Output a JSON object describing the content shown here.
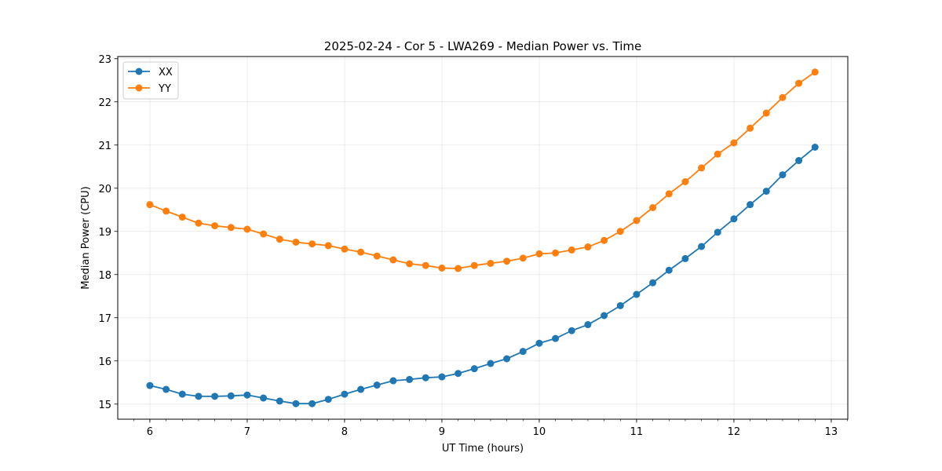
{
  "chart_data": {
    "type": "line",
    "title": "2025-02-24 - Cor 5 - LWA269 - Median Power vs. Time",
    "xlabel": "UT Time (hours)",
    "ylabel": "Median Power (CPU)",
    "xlim": [
      5.67,
      13.17
    ],
    "ylim": [
      14.65,
      23.05
    ],
    "xticks": [
      6,
      7,
      8,
      9,
      10,
      11,
      12,
      13
    ],
    "yticks": [
      15,
      16,
      17,
      18,
      19,
      20,
      21,
      22,
      23
    ],
    "xminor_step": 0.16667,
    "grid": true,
    "legend_position": "top-left",
    "x": [
      6.0,
      6.1667,
      6.3333,
      6.5,
      6.6667,
      6.8333,
      7.0,
      7.1667,
      7.3333,
      7.5,
      7.6667,
      7.8333,
      8.0,
      8.1667,
      8.3333,
      8.5,
      8.6667,
      8.8333,
      9.0,
      9.1667,
      9.3333,
      9.5,
      9.6667,
      9.8333,
      10.0,
      10.1667,
      10.3333,
      10.5,
      10.6667,
      10.8333,
      11.0,
      11.1667,
      11.3333,
      11.5,
      11.6667,
      11.8333,
      12.0,
      12.1667,
      12.3333,
      12.5,
      12.6667,
      12.8333
    ],
    "series": [
      {
        "name": "XX",
        "color": "#1f77b4",
        "values": [
          15.43,
          15.34,
          15.23,
          15.18,
          15.18,
          15.19,
          15.21,
          15.14,
          15.07,
          15.01,
          15.01,
          15.11,
          15.23,
          15.34,
          15.44,
          15.54,
          15.57,
          15.61,
          15.63,
          15.71,
          15.82,
          15.94,
          16.05,
          16.22,
          16.41,
          16.52,
          16.7,
          16.84,
          17.05,
          17.28,
          17.54,
          17.81,
          18.1,
          18.37,
          18.65,
          18.98,
          19.29,
          19.62,
          19.93,
          20.31,
          20.64,
          20.95
        ]
      },
      {
        "name": "YY",
        "color": "#ff7f0e",
        "values": [
          19.62,
          19.47,
          19.33,
          19.19,
          19.13,
          19.09,
          19.05,
          18.94,
          18.82,
          18.75,
          18.71,
          18.67,
          18.59,
          18.52,
          18.43,
          18.34,
          18.25,
          18.21,
          18.15,
          18.14,
          18.21,
          18.26,
          18.31,
          18.38,
          18.48,
          18.5,
          18.57,
          18.64,
          18.79,
          19.0,
          19.25,
          19.55,
          19.87,
          20.15,
          20.47,
          20.79,
          21.05,
          21.39,
          21.74,
          22.1,
          22.43,
          22.69
        ]
      }
    ]
  }
}
